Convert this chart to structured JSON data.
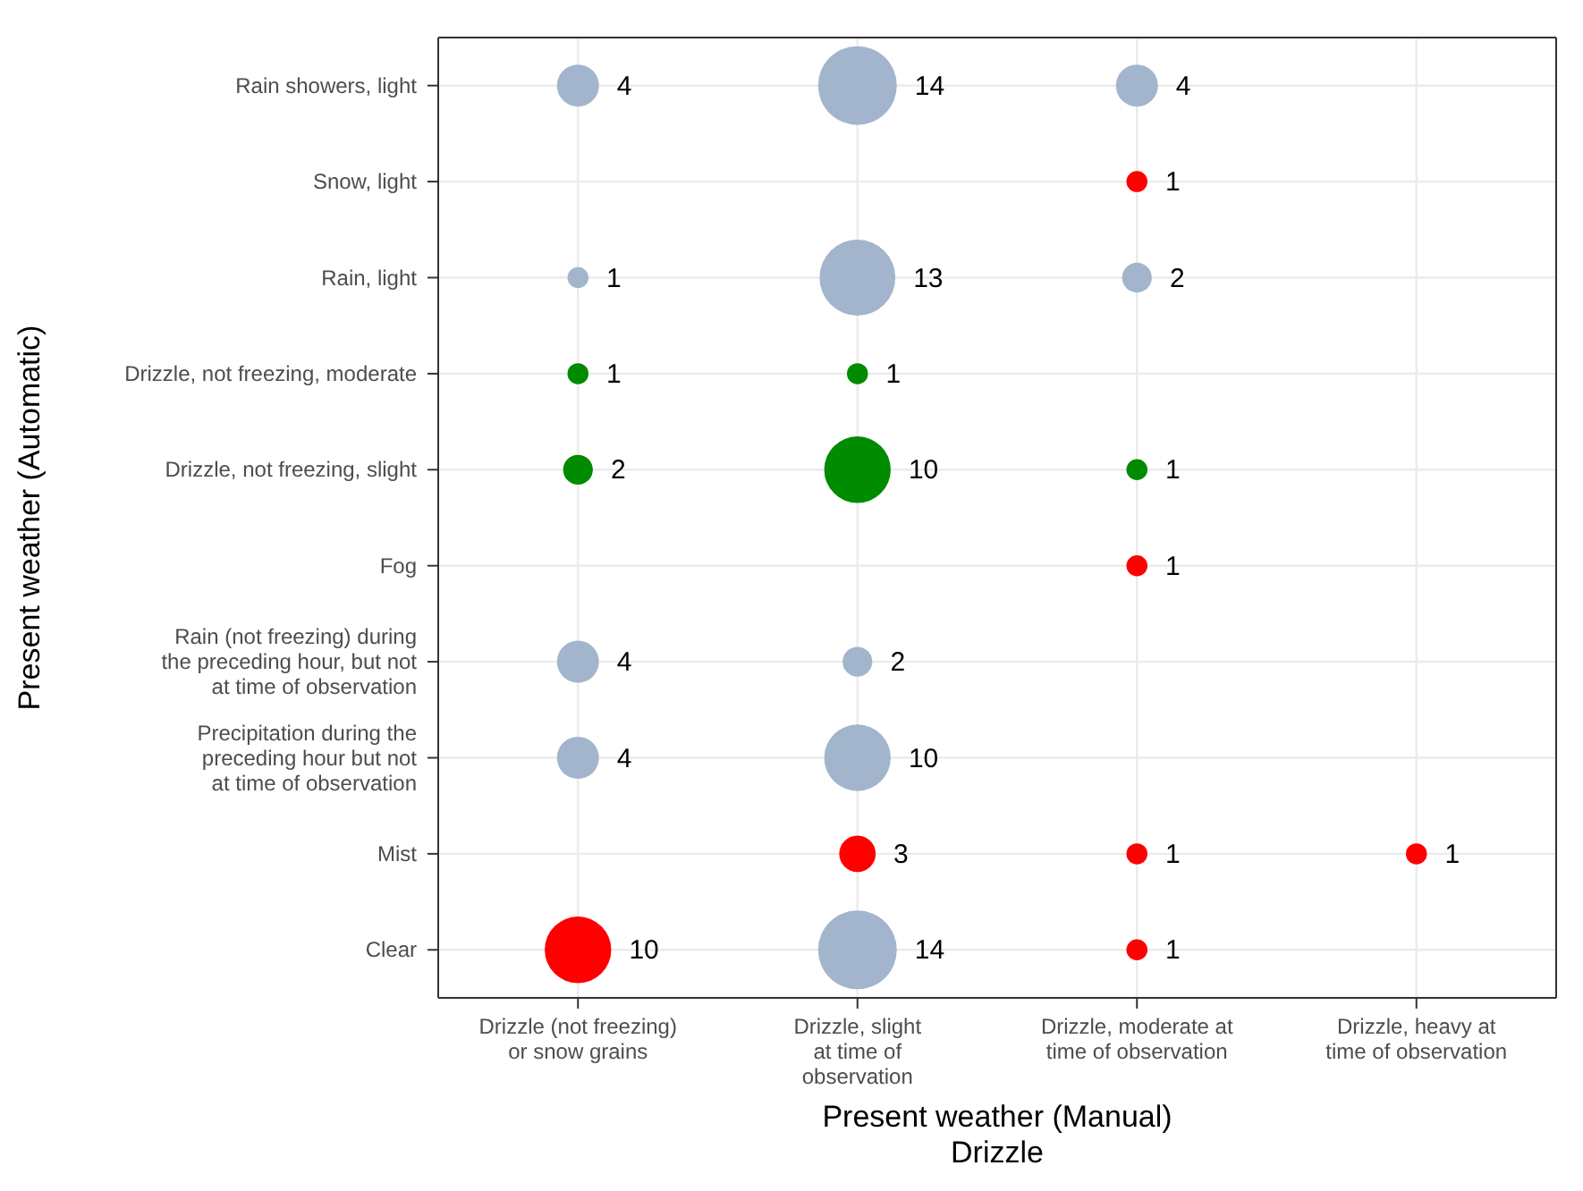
{
  "chart_data": {
    "type": "heatmap",
    "xlabel": "Present weather (Manual)\nDrizzle",
    "ylabel": "Present weather (Automatic)",
    "categories": [
      "Drizzle (not freezing)\nor snow grains",
      "Drizzle, slight\nat time of\nobservation",
      "Drizzle, moderate at\ntime of observation",
      "Drizzle, heavy at\ntime of observation"
    ],
    "y_categories": [
      "Rain showers, light",
      "Snow, light",
      "Rain, light",
      "Drizzle, not freezing, moderate",
      "Drizzle, not freezing, slight",
      "Fog",
      "Rain (not freezing) during\nthe preceding hour, but not\nat time of observation",
      "Precipitation during the\npreceding  hour but not\nat time of observation",
      "Mist",
      "Clear"
    ],
    "cells": [
      [
        4,
        14,
        4,
        null
      ],
      [
        null,
        null,
        1,
        null
      ],
      [
        1,
        13,
        2,
        null
      ],
      [
        1,
        1,
        null,
        null
      ],
      [
        2,
        10,
        1,
        null
      ],
      [
        null,
        null,
        1,
        null
      ],
      [
        4,
        2,
        null,
        null
      ],
      [
        4,
        10,
        null,
        null
      ],
      [
        null,
        3,
        1,
        1
      ],
      [
        10,
        14,
        1,
        null
      ]
    ],
    "colors": [
      [
        "#a2b5cd",
        "#a2b5cd",
        "#a2b5cd",
        null
      ],
      [
        null,
        null,
        "#ff0000",
        null
      ],
      [
        "#a2b5cd",
        "#a2b5cd",
        "#a2b5cd",
        null
      ],
      [
        "#008b00",
        "#008b00",
        null,
        null
      ],
      [
        "#008b00",
        "#008b00",
        "#008b00",
        null
      ],
      [
        null,
        null,
        "#ff0000",
        null
      ],
      [
        "#a2b5cd",
        "#a2b5cd",
        null,
        null
      ],
      [
        "#a2b5cd",
        "#a2b5cd",
        null,
        null
      ],
      [
        null,
        "#ff0000",
        "#ff0000",
        "#ff0000"
      ],
      [
        "#ff0000",
        "#a2b5cd",
        "#ff0000",
        null
      ]
    ],
    "data_labels": true,
    "grid": true
  }
}
